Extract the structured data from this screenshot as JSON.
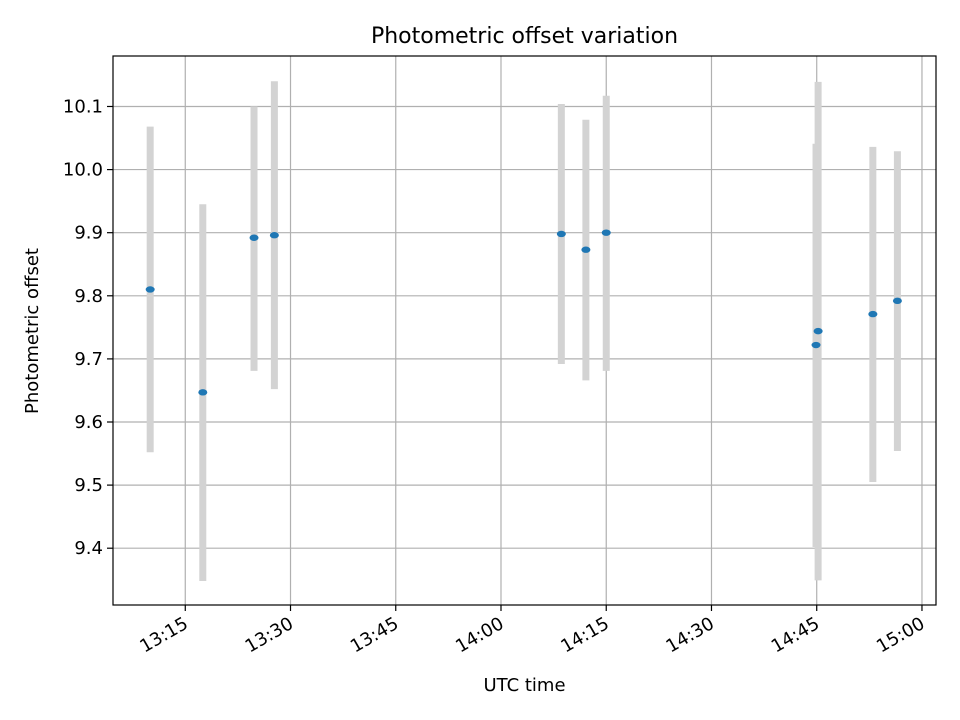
{
  "chart_data": {
    "type": "scatter",
    "title": "Photometric offset variation",
    "xlabel": "UTC time",
    "ylabel": "Photometric offset",
    "x_ticks": [
      "13:15",
      "13:30",
      "13:45",
      "14:00",
      "14:15",
      "14:30",
      "14:45",
      "15:00"
    ],
    "y_ticks": [
      "9.4",
      "9.5",
      "9.6",
      "9.7",
      "9.8",
      "9.9",
      "10.0",
      "10.1"
    ],
    "xlim": [
      "13:04.7",
      "15:02.0"
    ],
    "ylim": [
      9.31,
      10.18
    ],
    "grid": true,
    "series": [
      {
        "color": "#1f77b4",
        "error_color": "#d3d3d3",
        "points": [
          {
            "x": "13:10.0",
            "y": 9.81,
            "ylo": 9.552,
            "yhi": 10.068
          },
          {
            "x": "13:17.5",
            "y": 9.647,
            "ylo": 9.348,
            "yhi": 9.945
          },
          {
            "x": "13:24.8",
            "y": 9.892,
            "ylo": 9.681,
            "yhi": 10.1
          },
          {
            "x": "13:27.7",
            "y": 9.896,
            "ylo": 9.652,
            "yhi": 10.14
          },
          {
            "x": "14:08.6",
            "y": 9.898,
            "ylo": 9.692,
            "yhi": 10.104
          },
          {
            "x": "14:12.1",
            "y": 9.873,
            "ylo": 9.666,
            "yhi": 10.079
          },
          {
            "x": "14:15.0",
            "y": 9.9,
            "ylo": 9.681,
            "yhi": 10.117
          },
          {
            "x": "14:44.9",
            "y": 9.722,
            "ylo": 9.402,
            "yhi": 10.041
          },
          {
            "x": "14:45.2",
            "y": 9.744,
            "ylo": 9.349,
            "yhi": 10.139
          },
          {
            "x": "14:53.0",
            "y": 9.771,
            "ylo": 9.505,
            "yhi": 10.036
          },
          {
            "x": "14:56.5",
            "y": 9.792,
            "ylo": 9.554,
            "yhi": 10.029
          }
        ]
      }
    ]
  }
}
